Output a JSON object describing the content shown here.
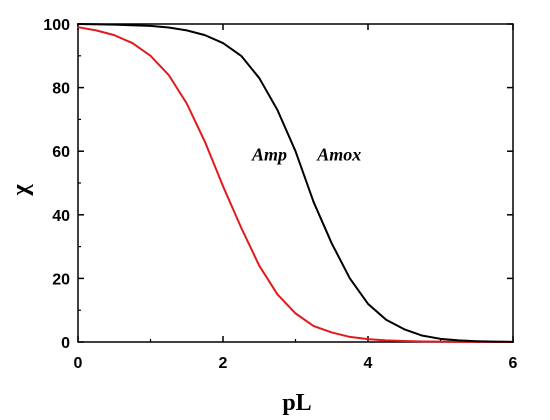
{
  "chart_data": {
    "type": "line",
    "xlabel": "pL",
    "ylabel": "χ",
    "xlim": [
      0,
      6
    ],
    "ylim": [
      0,
      100
    ],
    "xticks": [
      0,
      2,
      4,
      6
    ],
    "xtick_labels": [
      "0",
      "2",
      "4",
      "6"
    ],
    "yticks": [
      0,
      20,
      40,
      60,
      80,
      100
    ],
    "ytick_labels": [
      "0",
      "20",
      "40",
      "60",
      "80",
      "100"
    ],
    "grid": false,
    "series": [
      {
        "name": "Amp",
        "color": "#e31a1c",
        "x": [
          0,
          0.25,
          0.5,
          0.75,
          1.0,
          1.25,
          1.5,
          1.75,
          2.0,
          2.25,
          2.5,
          2.75,
          3.0,
          3.25,
          3.5,
          3.75,
          4.0,
          4.25,
          4.5,
          4.75,
          5.0,
          5.5,
          6.0
        ],
        "values": [
          99,
          98,
          96.5,
          94,
          90,
          84,
          75,
          63,
          49,
          36,
          24,
          15,
          9,
          5,
          3,
          1.6,
          0.9,
          0.5,
          0.3,
          0.15,
          0.1,
          0.03,
          0
        ]
      },
      {
        "name": "Amox",
        "color": "#000000",
        "x": [
          0,
          0.5,
          1.0,
          1.25,
          1.5,
          1.75,
          2.0,
          2.25,
          2.5,
          2.75,
          3.0,
          3.25,
          3.5,
          3.75,
          4.0,
          4.25,
          4.5,
          4.75,
          5.0,
          5.25,
          5.5,
          5.75,
          6.0
        ],
        "values": [
          100,
          99.8,
          99.4,
          98.9,
          98,
          96.5,
          94,
          90,
          83,
          73,
          60,
          44,
          31,
          20,
          12,
          7,
          4,
          2,
          1,
          0.5,
          0.25,
          0.1,
          0.05
        ]
      }
    ],
    "annotations": [
      {
        "text": "Amp",
        "x": 2.4,
        "y": 57
      },
      {
        "text": "Amox",
        "x": 3.3,
        "y": 57
      }
    ]
  }
}
